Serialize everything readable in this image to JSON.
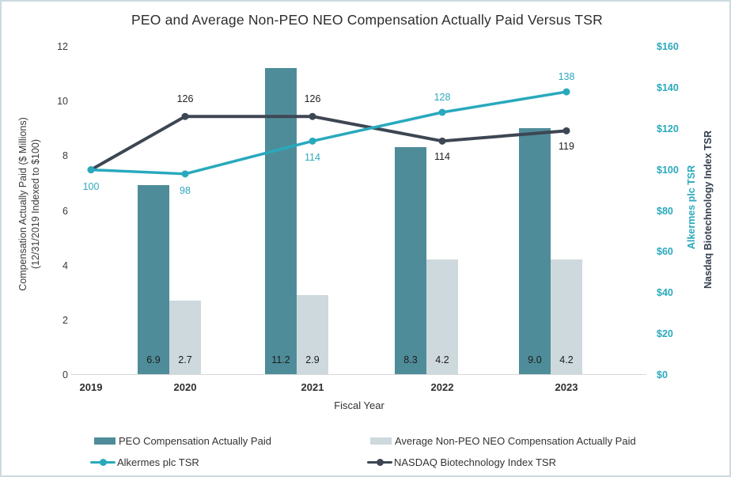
{
  "frame": {
    "border_color": "#ccdae1",
    "background_color": "#ffffff"
  },
  "chart": {
    "title": "PEO and Average Non-PEO NEO Compensation Actually Paid Versus TSR",
    "x_axis": {
      "title": "Fiscal Year",
      "categories": [
        "2019",
        "2020",
        "2021",
        "2022",
        "2023"
      ]
    },
    "left_axis": {
      "title_line1": "Compensation Actually Paid ($ Millions)",
      "title_line2": "(12/31/2019 Indexed to $100)",
      "tick_labels": [
        "0",
        "2",
        "4",
        "6",
        "8",
        "10",
        "12"
      ]
    },
    "right_axis": {
      "tick_labels": [
        "$0",
        "$20",
        "$40",
        "$60",
        "$80",
        "$100",
        "$120",
        "$140",
        "$160"
      ],
      "tick_color": "#2aa9bd",
      "title_alkermes": "Alkermes plc TSR",
      "title_alkermes_color": "#2aa9bd",
      "title_nasdaq": "Nasdaq Biotechnology Index TSR",
      "title_nasdaq_color": "#333f4f"
    }
  },
  "chart_data": {
    "type": "bar+line combo",
    "categories": [
      "2019",
      "2020",
      "2021",
      "2022",
      "2023"
    ],
    "left_ylim": [
      0,
      12
    ],
    "right_ylim": [
      0,
      160
    ],
    "grid": false,
    "legend_position": "bottom",
    "series": [
      {
        "name": "PEO Compensation Actually Paid",
        "type": "bar",
        "axis": "left",
        "color": "#4f8c99",
        "values": [
          null,
          6.9,
          11.2,
          8.3,
          9.0
        ],
        "value_labels": [
          null,
          "6.9",
          "11.2",
          "8.3",
          "9.0"
        ]
      },
      {
        "name": "Average Non-PEO NEO Compensation Actually Paid",
        "type": "bar",
        "axis": "left",
        "color": "#cdd9dd",
        "values": [
          null,
          2.7,
          2.9,
          4.2,
          4.2
        ],
        "value_labels": [
          null,
          "2.7",
          "2.9",
          "4.2",
          "4.2"
        ]
      },
      {
        "name": "Alkermes plc TSR",
        "type": "line",
        "axis": "right",
        "color": "#29a9bd",
        "label_color": "#2fa9bd",
        "values": [
          100,
          98,
          114,
          128,
          138
        ],
        "value_labels": [
          "100",
          "98",
          "114",
          "128",
          "138"
        ]
      },
      {
        "name": "NASDAQ Biotechnology Index TSR",
        "type": "line",
        "axis": "right",
        "color": "#3e4653",
        "label_color": "#1f1f1f",
        "values": [
          100,
          126,
          126,
          114,
          119
        ],
        "value_labels": [
          null,
          "126",
          "126",
          "114",
          "119"
        ]
      }
    ]
  }
}
